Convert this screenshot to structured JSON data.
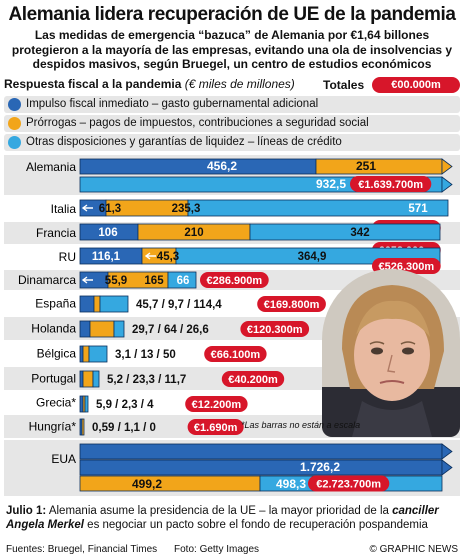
{
  "header": {
    "title": "Alemania lidera recuperación de UE de la pandemia",
    "subtitle": "Las medidas de emergencia “bazuca” de Alemania por €1,64 billones protegieron a la mayoría de las empresas, evitando una ola de insolvencias y despidos masivos, según Bruegel, un centro de estudios económicos"
  },
  "chart_data": {
    "type": "bar",
    "stacked": true,
    "title": "Respuesta fiscal a la pandemia",
    "unit": "(€ miles de millones)",
    "totals_label": "Totales",
    "totals_placeholder": "€00.000m",
    "scale_note": "*Las barras no están a escala",
    "series": [
      {
        "name": "Impulso fiscal inmediato – gasto gubernamental adicional",
        "color": "#2a67b5"
      },
      {
        "name": "Prórrogas – pagos de impuestos, contribuciones a seguridad social",
        "color": "#f2a51a"
      },
      {
        "name": "Otras disposiciones y garantías de liquidez – líneas de crédito",
        "color": "#35a8e0"
      }
    ],
    "countries": [
      {
        "name": "Alemania",
        "values": [
          456.2,
          251,
          932.5
        ],
        "labels": [
          "456,2",
          "251",
          "932,5"
        ],
        "total": "€1.639.700m"
      },
      {
        "name": "Italia",
        "values": [
          61.3,
          235.3,
          571
        ],
        "labels": [
          "61,3",
          "235,3",
          "571"
        ],
        "total": "€867.600m"
      },
      {
        "name": "Francia",
        "values": [
          106,
          210,
          342
        ],
        "labels": [
          "106",
          "210",
          "342"
        ],
        "total": "€658.000m"
      },
      {
        "name": "RU",
        "values": [
          116.1,
          45.3,
          364.9
        ],
        "labels": [
          "116,1",
          "45,3",
          "364,9"
        ],
        "total": "€526.300m"
      },
      {
        "name": "Dinamarca",
        "values": [
          55.9,
          165,
          66
        ],
        "labels": [
          "55,9",
          "165",
          "66"
        ],
        "total": "€286.900m"
      },
      {
        "name": "España",
        "values": [
          45.7,
          9.7,
          114.4
        ],
        "label_text": "45,7 / 9,7 / 114,4",
        "total": "€169.800m"
      },
      {
        "name": "Holanda",
        "values": [
          29.7,
          64,
          26.6
        ],
        "label_text": "29,7 / 64 / 26,6",
        "total": "€120.300m"
      },
      {
        "name": "Bélgica",
        "values": [
          3.1,
          13,
          50
        ],
        "label_text": "3,1 / 13 / 50",
        "total": "€66.100m"
      },
      {
        "name": "Portugal",
        "values": [
          5.2,
          23.3,
          11.7
        ],
        "label_text": "5,2 / 23,3 / 11,7",
        "total": "€40.200m"
      },
      {
        "name": "Grecia*",
        "values": [
          5.9,
          2.3,
          4
        ],
        "label_text": "5,9 / 2,3 / 4",
        "total": "€12.200m"
      },
      {
        "name": "Hungría*",
        "values": [
          0.59,
          1.1,
          0
        ],
        "label_text": "0,59 / 1,1 / 0",
        "total": "€1.690m"
      },
      {
        "name": "EUA",
        "values": [
          1726.2,
          499.2,
          498.3
        ],
        "labels": [
          "1.726,2",
          "499,2",
          "498,3"
        ],
        "total": "€2.723.700m"
      }
    ]
  },
  "footnote": {
    "lead": "Julio 1:",
    "text_a": " Alemania asume la presidencia de la UE – la mayor prioridad de la ",
    "emphasis": "canciller Angela Merkel",
    "text_b": " es negociar un pacto sobre el fondo de recuperación pospandemia"
  },
  "credits": {
    "sources": "Fuentes: Bruegel, Financial Times",
    "photo": "Foto: Getty Images",
    "brand": "© GRAPHIC NEWS"
  },
  "colors": {
    "accent_red": "#d7162a",
    "row_band": "#e6e6e6",
    "bar_outline": "#0b2f5c"
  }
}
